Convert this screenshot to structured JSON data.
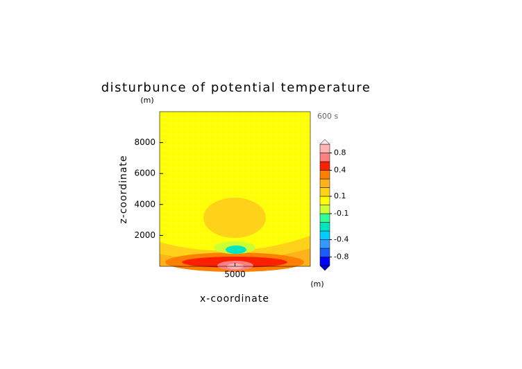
{
  "chart_data": {
    "type": "contour",
    "title": "disturbunce of potential temperature",
    "x_label": "x-coordinate",
    "y_label": "z-coordinate",
    "x_unit": "(m)",
    "y_unit": "(m)",
    "time_label": "600 s",
    "xlim": [
      0,
      10000
    ],
    "ylim": [
      0,
      10000
    ],
    "xticks": [
      5000
    ],
    "yticks": [
      2000,
      4000,
      6000,
      8000
    ],
    "levels": [
      -1,
      -0.8,
      -0.6,
      -0.4,
      -0.3,
      -0.2,
      -0.1,
      0,
      0.1,
      0.2,
      0.3,
      0.4,
      0.6,
      0.8,
      1
    ],
    "colors": [
      "#0000ff",
      "#1a5cff",
      "#3399ff",
      "#00ccff",
      "#00e6c0",
      "#33ff99",
      "#ccff33",
      "#ffff00",
      "#ffd21a",
      "#ffb31a",
      "#ff8000",
      "#ff2000",
      "#ff8080",
      "#ffb3b3"
    ],
    "under_color": "#0000cc",
    "over_color": "#ffe6e6",
    "colorbar_ticks": [
      0.8,
      0.4,
      0.1,
      -0.1,
      -0.4,
      -0.8
    ]
  }
}
